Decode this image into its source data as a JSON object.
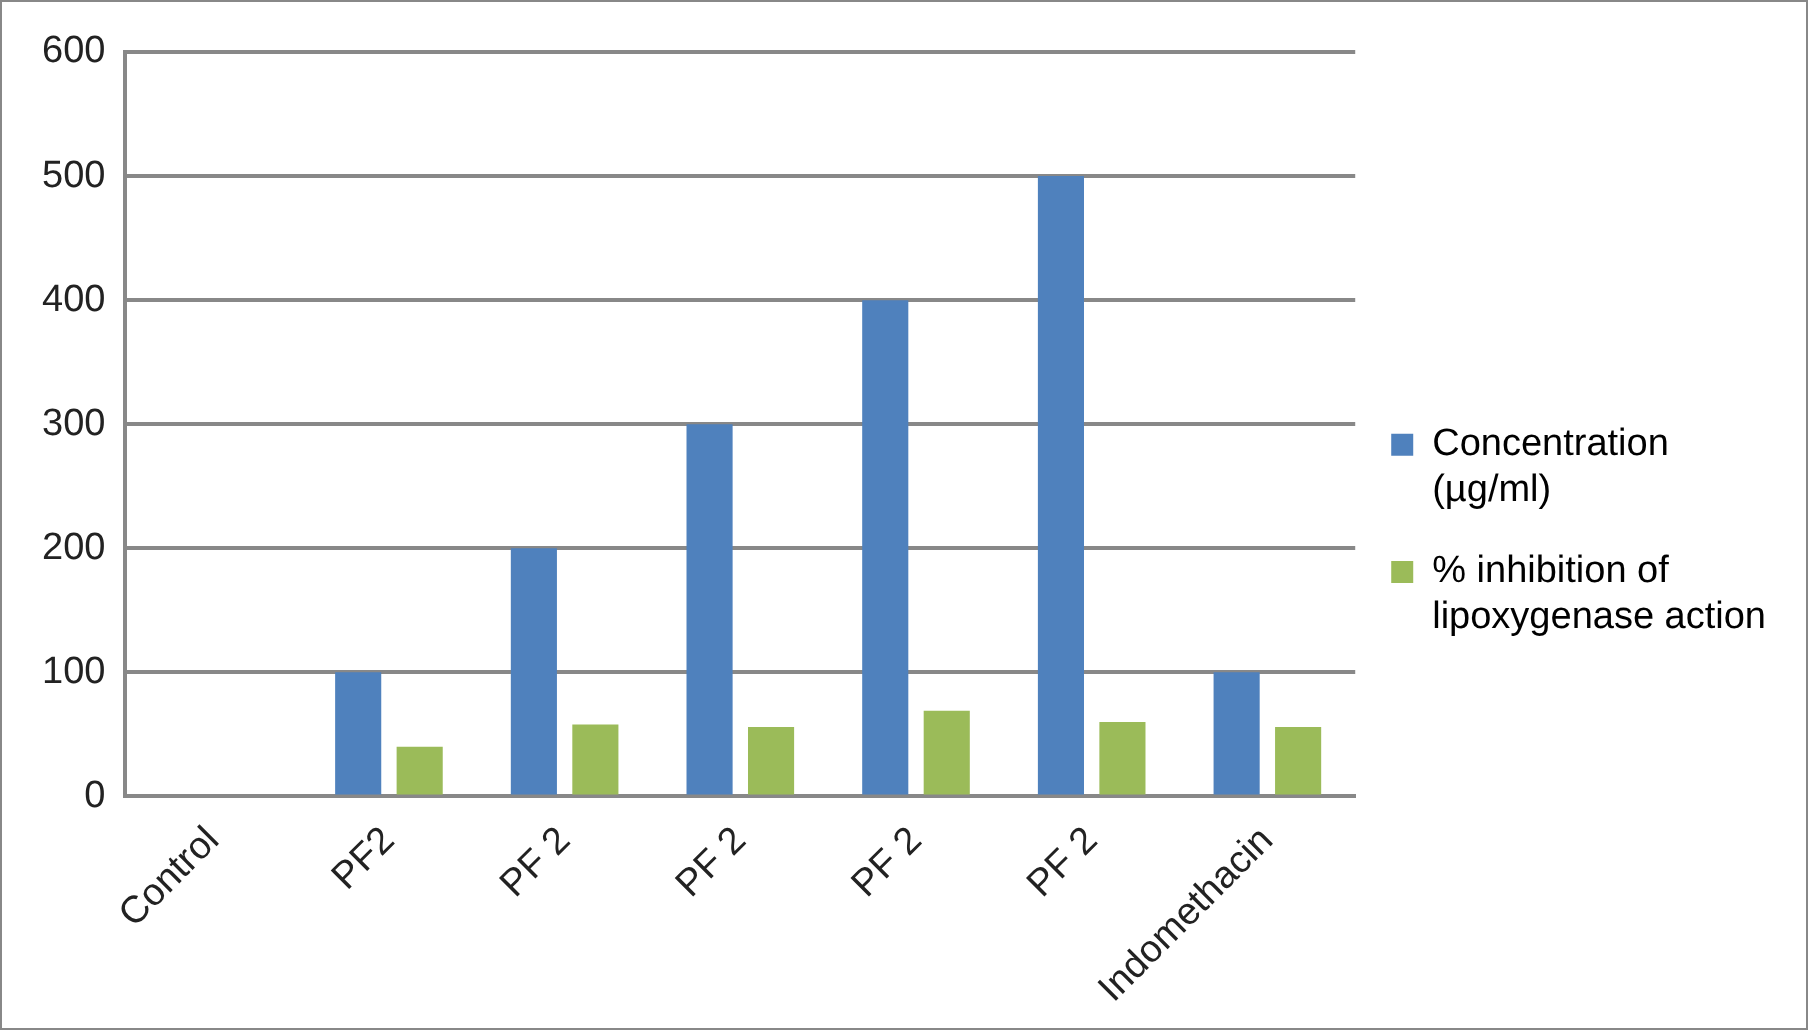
{
  "chart_data": {
    "type": "bar",
    "categories": [
      "Control",
      "PF2",
      "PF 2",
      "PF 2",
      "PF 2",
      "PF 2",
      "Indomethacin"
    ],
    "series": [
      {
        "name": "Concentration (µg/ml)",
        "color": "#4f81bd",
        "values": [
          null,
          100,
          200,
          300,
          400,
          500,
          100
        ]
      },
      {
        "name": "% inhibition of lipoxygenase action",
        "color": "#9bbb59",
        "values": [
          null,
          40,
          58,
          56,
          69,
          60,
          56
        ]
      }
    ],
    "ylim": [
      0,
      600
    ],
    "yticks": [
      0,
      100,
      200,
      300,
      400,
      500,
      600
    ],
    "grid": "y",
    "legend": "right"
  }
}
